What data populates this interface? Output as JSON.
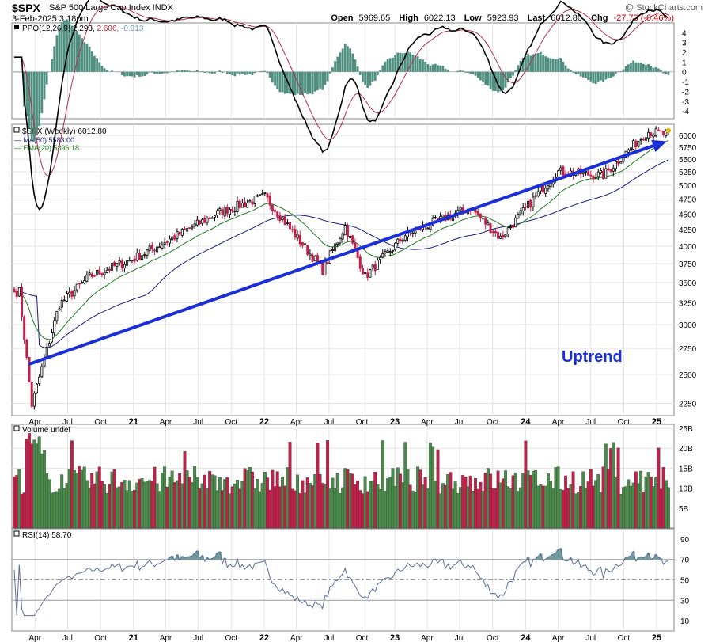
{
  "header": {
    "symbol": "$SPX",
    "description": "S&P 500 Large Cap Index  INDX",
    "watermark": "@ StockCharts.com",
    "date": "3-Feb-2025 3:18pm",
    "open_label": "Open",
    "open": "5969.65",
    "high_label": "High",
    "high": "6022.13",
    "low_label": "Low",
    "low": "5923.93",
    "last_label": "Last",
    "last": "6012.80",
    "chg_label": "Chg",
    "chg": "-27.73 (-0.46%)"
  },
  "colors": {
    "up": "#4a8a4a",
    "down": "#c0204a",
    "trend": "#1a2fd6",
    "ma50": "#1b1b7a",
    "ema20": "#1f7a1f",
    "ppo_signal": "#b0304a",
    "ppo_hist": "#4f8f80",
    "rsi": "#5a6e9a"
  },
  "chart_data": [
    {
      "type": "line",
      "panel": "ppo",
      "label": "PPO(12,26,9) 2.293, 2.606, -0.313",
      "label_parts": [
        "PPO(12,26,9) 2.293,",
        "2.606,",
        "-0.313"
      ],
      "y_ticks": [
        "4",
        "3",
        "2",
        "1",
        "0",
        "-1",
        "-2",
        "-3",
        "-4"
      ],
      "ylim": [
        -4.8,
        5.0
      ]
    },
    {
      "type": "candlestick",
      "panel": "price",
      "label": "$SPX (Weekly) 6012.80",
      "legend": [
        {
          "name": "MA(50) 5583.00"
        },
        {
          "name": "EMA(20) 5896.18"
        }
      ],
      "annotation": "Uptrend",
      "y_ticks": [
        6000,
        5750,
        5500,
        5250,
        5000,
        4750,
        4500,
        4250,
        4000,
        3750,
        3500,
        3250,
        3000,
        2750,
        2500,
        2250
      ],
      "y_scale": "log",
      "ylim": [
        2150,
        6250
      ],
      "trendline": {
        "from": [
          "2020-03-23",
          2600
        ],
        "to": [
          "2025-02-03",
          5850
        ]
      },
      "key_points": [
        [
          "2020-02-17",
          3386
        ],
        [
          "2020-03-23",
          2237
        ],
        [
          "2020-06-08",
          3232
        ],
        [
          "2020-09-01",
          3580
        ],
        [
          "2021-01-04",
          3825
        ],
        [
          "2021-09-01",
          4537
        ],
        [
          "2022-01-03",
          4796
        ],
        [
          "2022-06-13",
          3667
        ],
        [
          "2022-08-15",
          4305
        ],
        [
          "2022-10-10",
          3577
        ],
        [
          "2023-02-01",
          4179
        ],
        [
          "2023-07-31",
          4607
        ],
        [
          "2023-10-23",
          4117
        ],
        [
          "2024-03-28",
          5254
        ],
        [
          "2024-08-05",
          5186
        ],
        [
          "2024-12-06",
          6090
        ],
        [
          "2025-02-03",
          6012
        ]
      ]
    },
    {
      "type": "bar",
      "panel": "volume",
      "label": "Volume undef",
      "y_ticks": [
        "25B",
        "20B",
        "15B",
        "10B",
        "5B"
      ],
      "ylim": [
        0,
        26
      ]
    },
    {
      "type": "line",
      "panel": "rsi",
      "label": "RSI(14) 58.70",
      "y_ticks": [
        "90",
        "70",
        "50",
        "30",
        "10"
      ],
      "ylim": [
        0,
        100
      ]
    }
  ],
  "x_ticks": [
    "Apr",
    "Jul",
    "Oct",
    "21",
    "Apr",
    "Jul",
    "Oct",
    "22",
    "Apr",
    "Jul",
    "Oct",
    "23",
    "Apr",
    "Jul",
    "Oct",
    "24",
    "Apr",
    "Jul",
    "Oct",
    "25"
  ]
}
